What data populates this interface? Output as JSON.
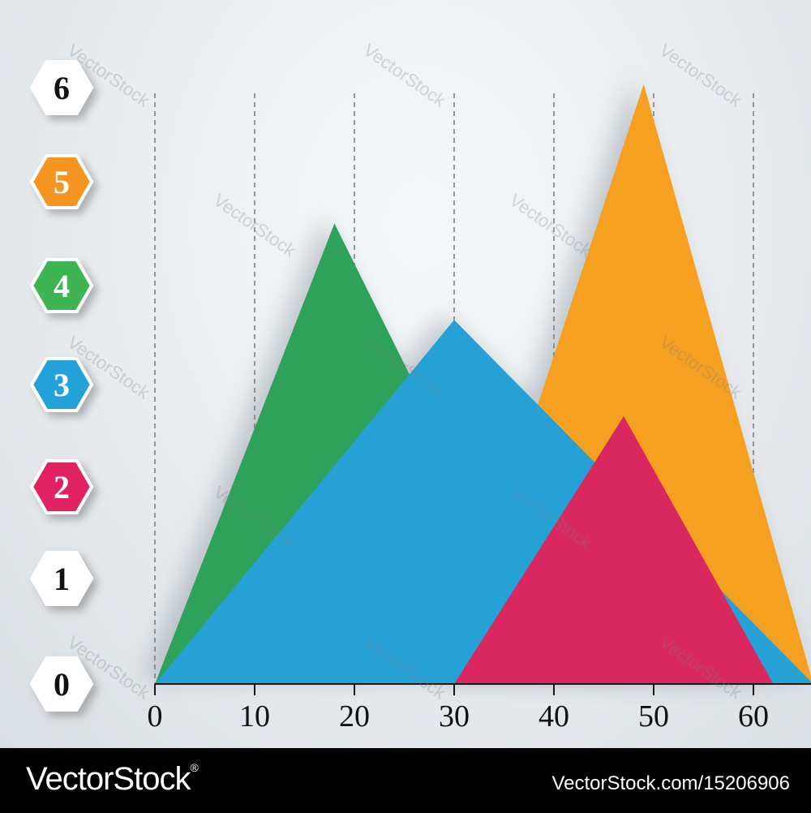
{
  "chart_data": {
    "type": "area",
    "x_ticks": [
      "0",
      "10",
      "20",
      "30",
      "40",
      "50",
      "60"
    ],
    "y_ticks": [
      "0",
      "1",
      "2",
      "3",
      "4",
      "5",
      "6"
    ],
    "xlim": [
      0,
      66
    ],
    "ylim": [
      0,
      6
    ],
    "grid": "vertical-dashed",
    "series": [
      {
        "color": "#f5a020",
        "points": [
          [
            38,
            2.5
          ],
          [
            49,
            5.6
          ],
          [
            66,
            0
          ]
        ]
      },
      {
        "color": "#2ea25a",
        "points": [
          [
            0,
            0
          ],
          [
            18,
            4.3
          ],
          [
            26,
            2.8
          ]
        ]
      },
      {
        "color": "#25a1d6",
        "points": [
          [
            0,
            0
          ],
          [
            30,
            3.4
          ],
          [
            66,
            0
          ]
        ]
      },
      {
        "color": "#d8285f",
        "points": [
          [
            30,
            0
          ],
          [
            47,
            2.5
          ],
          [
            62,
            0
          ]
        ]
      }
    ],
    "y_badge_colors": [
      "#ffffff",
      "#ffffff",
      "#e02460",
      "#22a2d8",
      "#3db552",
      "#f49520",
      "#ffffff"
    ],
    "y_badge_text_colors": [
      "#111111",
      "#111111",
      "#ffffff",
      "#ffffff",
      "#ffffff",
      "#ffffff",
      "#111111"
    ]
  },
  "watermark_text": "VectorStock",
  "footer": {
    "brand": "VectorStock",
    "registered": "®",
    "image_id": "VectorStock.com/15206906"
  }
}
